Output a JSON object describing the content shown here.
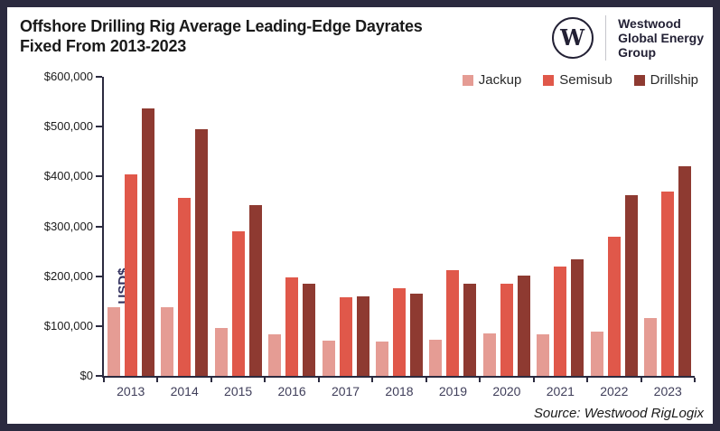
{
  "header": {
    "title_line1": "Offshore Drilling Rig Average Leading-Edge Dayrates",
    "title_line2": "Fixed From 2013-2023"
  },
  "logo": {
    "monogram": "W",
    "line1": "Westwood",
    "line2": "Global Energy",
    "line3": "Group"
  },
  "chart_data": {
    "type": "bar",
    "title": "Offshore Drilling Rig Average Leading-Edge Dayrates Fixed From 2013-2023",
    "xlabel": "",
    "ylabel": "USD$",
    "ylim": [
      0,
      600000
    ],
    "grid": false,
    "legend_position": "top-right",
    "ytick_labels": [
      "$0",
      "$100,000",
      "$200,000",
      "$300,000",
      "$400,000",
      "$500,000",
      "$600,000"
    ],
    "categories": [
      "2013",
      "2014",
      "2015",
      "2016",
      "2017",
      "2018",
      "2019",
      "2020",
      "2021",
      "2022",
      "2023"
    ],
    "series": [
      {
        "name": "Jackup",
        "color": "#e59c94",
        "values": [
          138000,
          137000,
          96000,
          84000,
          71000,
          68000,
          72000,
          86000,
          83000,
          89000,
          116000
        ]
      },
      {
        "name": "Semisub",
        "color": "#e0584a",
        "values": [
          405000,
          358000,
          290000,
          198000,
          158000,
          175000,
          212000,
          185000,
          220000,
          280000,
          370000
        ]
      },
      {
        "name": "Drillship",
        "color": "#8e3a31",
        "values": [
          536000,
          495000,
          343000,
          185000,
          160000,
          165000,
          185000,
          202000,
          234000,
          362000,
          420000
        ]
      }
    ]
  },
  "source": {
    "label": "Source: Westwood RigLogix"
  },
  "colors": {
    "frame": "#2b2a3f",
    "axis": "#2b2a3f",
    "year_label": "#3f3e5a",
    "ylabel_text": "#33325f"
  }
}
